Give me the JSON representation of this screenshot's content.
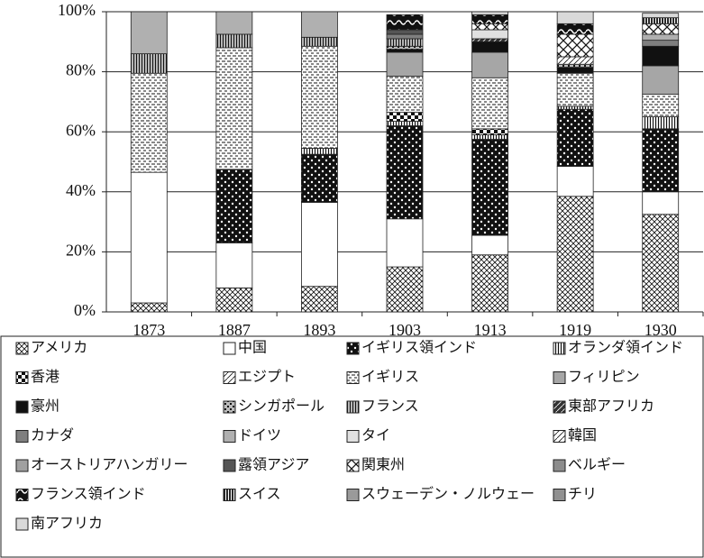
{
  "chart_data": {
    "type": "stacked_bar_100",
    "categories": [
      "1873",
      "1887",
      "1893",
      "1903",
      "1913",
      "1919",
      "1930"
    ],
    "ylim": [
      0,
      100
    ],
    "yticks": [
      {
        "value": 0,
        "label": "0%"
      },
      {
        "value": 20,
        "label": "20%"
      },
      {
        "value": 40,
        "label": "40%"
      },
      {
        "value": 60,
        "label": "60%"
      },
      {
        "value": 80,
        "label": "80%"
      },
      {
        "value": 100,
        "label": "100%"
      }
    ],
    "grid": true,
    "series": [
      {
        "name": "アメリカ",
        "color": "#ffffff",
        "pattern": "xhatch",
        "values": [
          3,
          8,
          8.5,
          15,
          19,
          38.5,
          32.5
        ]
      },
      {
        "name": "中国",
        "color": "#ffffff",
        "values": [
          43.5,
          15,
          28,
          16,
          6.5,
          10,
          7.5
        ]
      },
      {
        "name": "イギリス領インド",
        "color": "#111111",
        "pattern": "dots",
        "values": [
          0,
          24.5,
          16,
          31,
          32,
          19,
          21
        ]
      },
      {
        "name": "オランダ領インド",
        "color": "#ffffff",
        "pattern": "vstripes",
        "values": [
          0,
          0,
          2,
          1.5,
          1.5,
          1,
          4
        ]
      },
      {
        "name": "香港",
        "color": "#111111",
        "pattern": "check",
        "values": [
          0,
          0,
          0,
          3,
          2,
          0,
          0
        ]
      },
      {
        "name": "エジプト",
        "color": "#ffffff",
        "pattern": "diag",
        "values": [
          0,
          0,
          0,
          0,
          0,
          0,
          0
        ]
      },
      {
        "name": "イギリス",
        "color": "#ffffff",
        "pattern": "dashes",
        "values": [
          33,
          40.5,
          34,
          12,
          17,
          11,
          7.5
        ]
      },
      {
        "name": "フィリピン",
        "color": "#a6a6a6",
        "values": [
          0,
          0,
          0,
          8,
          8.5,
          0,
          9.5
        ]
      },
      {
        "name": "豪州",
        "color": "#111111",
        "values": [
          0,
          0,
          0,
          1,
          3.5,
          2,
          6.5
        ]
      },
      {
        "name": "シンガポール",
        "color": "#bbbbbb",
        "pattern": "dense",
        "values": [
          0,
          0,
          0,
          1,
          0,
          1,
          0
        ]
      },
      {
        "name": "フランス",
        "color": "#c8c8c8",
        "pattern": "vstripes",
        "values": [
          6.5,
          4.5,
          3,
          2.5,
          0,
          0,
          0
        ]
      },
      {
        "name": "東部アフリカ",
        "color": "#333333",
        "pattern": "diag",
        "values": [
          0,
          0,
          0,
          0,
          1,
          0,
          0
        ]
      },
      {
        "name": "カナダ",
        "color": "#7f7f7f",
        "values": [
          0,
          0,
          0,
          1.5,
          0,
          0,
          2
        ]
      },
      {
        "name": "ドイツ",
        "color": "#b0b0b0",
        "values": [
          14,
          7.5,
          8.5,
          0,
          0,
          0,
          2
        ]
      },
      {
        "name": "タイ",
        "color": "#e0e0e0",
        "values": [
          0,
          0,
          0,
          0,
          3,
          0,
          0
        ]
      },
      {
        "name": "韓国",
        "color": "#ffffff",
        "pattern": "diag",
        "values": [
          0,
          0,
          0,
          0,
          0,
          2.5,
          0
        ]
      },
      {
        "name": "オーストリアハンガリー",
        "color": "#a0a0a0",
        "values": [
          0,
          0,
          0,
          0,
          0,
          0,
          0
        ]
      },
      {
        "name": "露領アジア",
        "color": "#555555",
        "values": [
          0,
          0,
          0,
          1.5,
          0,
          0,
          0
        ]
      },
      {
        "name": "関東州",
        "color": "#ffffff",
        "pattern": "bigx",
        "values": [
          0,
          0,
          0,
          0,
          2,
          7.5,
          3.5
        ]
      },
      {
        "name": "ベルギー",
        "color": "#8c8c8c",
        "values": [
          0,
          0,
          0,
          0,
          0,
          0,
          0
        ]
      },
      {
        "name": "フランス領インド",
        "color": "#111111",
        "pattern": "wave",
        "values": [
          0,
          0,
          0,
          5,
          3,
          3.5,
          0
        ]
      },
      {
        "name": "スイス",
        "color": "#111111",
        "pattern": "vstripes",
        "values": [
          0,
          0,
          0,
          0,
          0,
          0,
          2
        ]
      },
      {
        "name": "スウェーデン・ノルウェー",
        "color": "#9a9a9a",
        "values": [
          0,
          0,
          0,
          0,
          0,
          0,
          0
        ]
      },
      {
        "name": "チリ",
        "color": "#909090",
        "values": [
          0,
          0,
          0,
          0,
          0,
          0,
          0
        ]
      },
      {
        "name": "南アフリカ",
        "color": "#d9d9d9",
        "values": [
          0,
          0,
          0,
          0,
          1,
          4,
          1.5
        ]
      }
    ]
  }
}
